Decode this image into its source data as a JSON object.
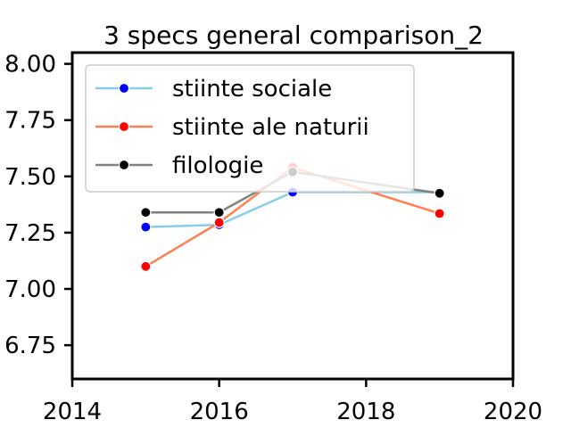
{
  "chart_data": {
    "type": "line",
    "title": "3 specs general comparison_2",
    "xlabel": "",
    "ylabel": "",
    "xlim": [
      2014,
      2020
    ],
    "ylim": [
      6.6,
      8.05
    ],
    "x_ticks": [
      2014,
      2016,
      2018,
      2020
    ],
    "y_ticks": [
      6.75,
      7.0,
      7.25,
      7.5,
      7.75,
      8.0
    ],
    "y_tick_labels": [
      "6.75",
      "7.00",
      "7.25",
      "7.50",
      "7.75",
      "8.00"
    ],
    "legend_position": "top-left",
    "grid": false,
    "series": [
      {
        "name": "stiinte sociale",
        "x": [
          2015,
          2016,
          2017,
          2019
        ],
        "y": [
          7.275,
          7.285,
          7.43,
          7.43
        ],
        "line_color": "#87ceeb",
        "marker_color": "#0000ff"
      },
      {
        "name": "stiinte ale naturii",
        "x": [
          2015,
          2016,
          2017,
          2019
        ],
        "y": [
          7.1,
          7.295,
          7.54,
          7.335
        ],
        "line_color": "#ff7f50",
        "marker_color": "#ff0000"
      },
      {
        "name": "filologie",
        "x": [
          2015,
          2016,
          2017,
          2019
        ],
        "y": [
          7.34,
          7.34,
          7.52,
          7.425
        ],
        "line_color": "#808080",
        "marker_color": "#000000"
      }
    ]
  }
}
